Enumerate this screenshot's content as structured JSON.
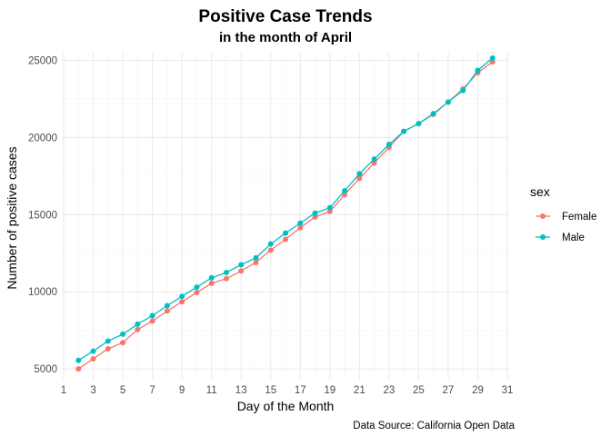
{
  "chart_data": {
    "type": "line",
    "title": "Positive Case Trends",
    "subtitle": "in the month of April",
    "xlabel": "Day of the Month",
    "ylabel": "Number of positive cases",
    "caption": "Data Source: California Open Data",
    "xlim": [
      1,
      31
    ],
    "ylim": [
      4300,
      25500
    ],
    "x_ticks": [
      1,
      3,
      5,
      7,
      9,
      11,
      13,
      15,
      17,
      19,
      21,
      23,
      25,
      27,
      29,
      31
    ],
    "y_ticks": [
      5000,
      10000,
      15000,
      20000,
      25000
    ],
    "grid": true,
    "legend": {
      "title": "sex",
      "position": "right"
    },
    "x": [
      2,
      3,
      4,
      5,
      6,
      7,
      8,
      9,
      10,
      11,
      12,
      13,
      14,
      15,
      16,
      17,
      18,
      19,
      20,
      21,
      22,
      23,
      24,
      25,
      26,
      27,
      28,
      29,
      30
    ],
    "series": [
      {
        "name": "Female",
        "color": "#F8766D",
        "values": [
          5000,
          5650,
          6300,
          6700,
          7550,
          8100,
          8750,
          9350,
          9950,
          10550,
          10850,
          11350,
          11900,
          12700,
          13400,
          14150,
          14850,
          15200,
          16300,
          17350,
          18350,
          19350,
          20400,
          20900,
          21500,
          22300,
          23150,
          24200,
          24900
        ]
      },
      {
        "name": "Male",
        "color": "#00BFC4",
        "values": [
          5550,
          6150,
          6800,
          7250,
          7900,
          8450,
          9100,
          9700,
          10300,
          10900,
          11250,
          11750,
          12200,
          13100,
          13800,
          14450,
          15100,
          15450,
          16550,
          17650,
          18600,
          19550,
          20400,
          20900,
          21550,
          22300,
          23050,
          24350,
          25150
        ]
      }
    ]
  }
}
